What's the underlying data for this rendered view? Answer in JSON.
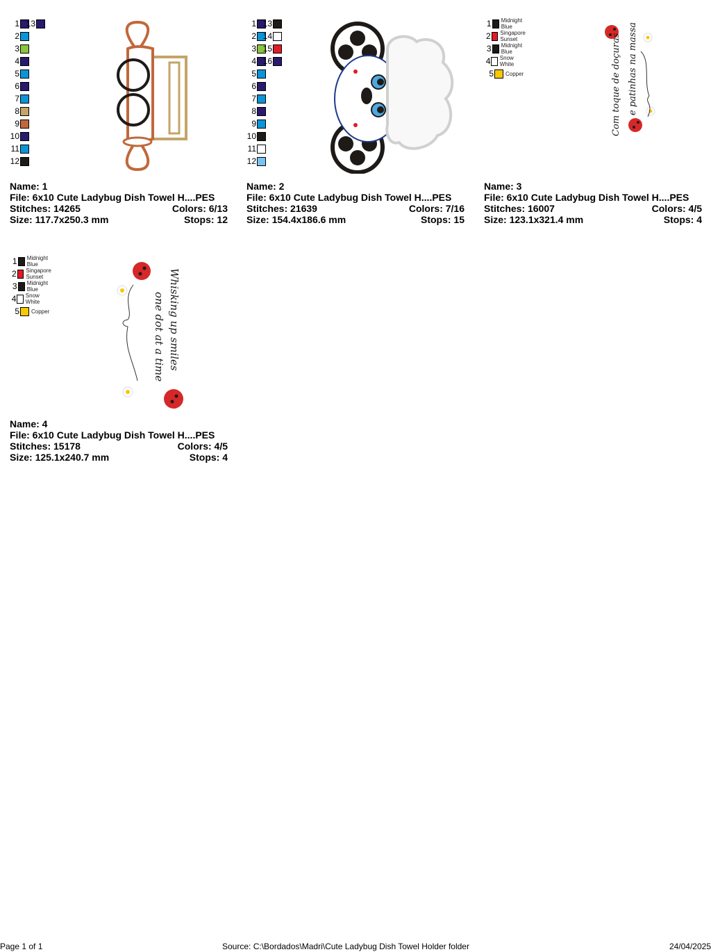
{
  "designs": [
    {
      "name_label": "Name: 1",
      "file_label": "File: 6x10 Cute Ladybug Dish Towel H....PES",
      "stitches_label": "Stitches: 14265",
      "colors_label": "Colors: 6/13",
      "size_label": "Size: 117.7x250.3 mm",
      "stops_label": "Stops: 12",
      "swatches": [
        {
          "n": "1",
          "color": "#2a1a6e"
        },
        {
          "n": "2",
          "color": "#0c94d8"
        },
        {
          "n": "3",
          "color": "#8cc43c"
        },
        {
          "n": "4",
          "color": "#2a1a6e"
        },
        {
          "n": "5",
          "color": "#0c94d8"
        },
        {
          "n": "6",
          "color": "#2a1a6e"
        },
        {
          "n": "7",
          "color": "#0c94d8"
        },
        {
          "n": "8",
          "color": "#c4a468"
        },
        {
          "n": "9",
          "color": "#c0683c"
        },
        {
          "n": "10",
          "color": "#2a1a6e"
        },
        {
          "n": "11",
          "color": "#0c94d8"
        },
        {
          "n": "12",
          "color": "#1e1a18"
        },
        {
          "n": "13",
          "color": "#2a1a6e"
        }
      ]
    },
    {
      "name_label": "Name: 2",
      "file_label": "File: 6x10 Cute Ladybug Dish Towel H....PES",
      "stitches_label": "Stitches: 21639",
      "colors_label": "Colors: 7/16",
      "size_label": "Size: 154.4x186.6 mm",
      "stops_label": "Stops: 15",
      "swatches": [
        {
          "n": "1",
          "color": "#2a1a6e"
        },
        {
          "n": "2",
          "color": "#0c94d8"
        },
        {
          "n": "3",
          "color": "#8cc43c"
        },
        {
          "n": "4",
          "color": "#2a1a6e"
        },
        {
          "n": "5",
          "color": "#0c94d8"
        },
        {
          "n": "6",
          "color": "#2a1a6e"
        },
        {
          "n": "7",
          "color": "#0c94d8"
        },
        {
          "n": "8",
          "color": "#2a1a6e"
        },
        {
          "n": "9",
          "color": "#0c94d8"
        },
        {
          "n": "10",
          "color": "#1e1a18"
        },
        {
          "n": "11",
          "color": "#ffffff"
        },
        {
          "n": "12",
          "color": "#78c4f0"
        },
        {
          "n": "13",
          "color": "#1e1a18"
        },
        {
          "n": "14",
          "color": "#ffffff"
        },
        {
          "n": "15",
          "color": "#e01c24"
        },
        {
          "n": "16",
          "color": "#2a1a6e"
        }
      ]
    },
    {
      "name_label": "Name: 3",
      "file_label": "File: 6x10 Cute Ladybug Dish Towel H....PES",
      "stitches_label": "Stitches: 16007",
      "colors_label": "Colors: 4/5",
      "size_label": "Size: 123.1x321.4 mm",
      "stops_label": "Stops: 4",
      "artwork_text": [
        "Com toque de doçuras",
        "e patinhas na massa"
      ],
      "swatches": [
        {
          "n": "1",
          "color": "#1e1a18",
          "label": "Midnight Blue"
        },
        {
          "n": "2",
          "color": "#e01c24",
          "label": "Singapore Sunset"
        },
        {
          "n": "3",
          "color": "#1e1a18",
          "label": "Midnight Blue"
        },
        {
          "n": "4",
          "color": "#ffffff",
          "label": "Snow White"
        },
        {
          "n": "5",
          "color": "#f8c800",
          "label": "Copper"
        }
      ]
    },
    {
      "name_label": "Name: 4",
      "file_label": "File: 6x10 Cute Ladybug Dish Towel H....PES",
      "stitches_label": "Stitches: 15178",
      "colors_label": "Colors: 4/5",
      "size_label": "Size: 125.1x240.7 mm",
      "stops_label": "Stops: 4",
      "artwork_text": [
        "Whisking up smiles",
        "one dot at a time"
      ],
      "swatches": [
        {
          "n": "1",
          "color": "#1e1a18",
          "label": "Midnight Blue"
        },
        {
          "n": "2",
          "color": "#e01c24",
          "label": "Singapore Sunset"
        },
        {
          "n": "3",
          "color": "#1e1a18",
          "label": "Midnight Blue"
        },
        {
          "n": "4",
          "color": "#ffffff",
          "label": "Snow White"
        },
        {
          "n": "5",
          "color": "#f8c800",
          "label": "Copper"
        }
      ]
    }
  ],
  "footer": {
    "page": "Page 1 of 1",
    "source": "Source: C:\\Bordados\\Madri\\Cute Ladybug Dish Towel Holder folder",
    "date": "24/04/2025"
  }
}
